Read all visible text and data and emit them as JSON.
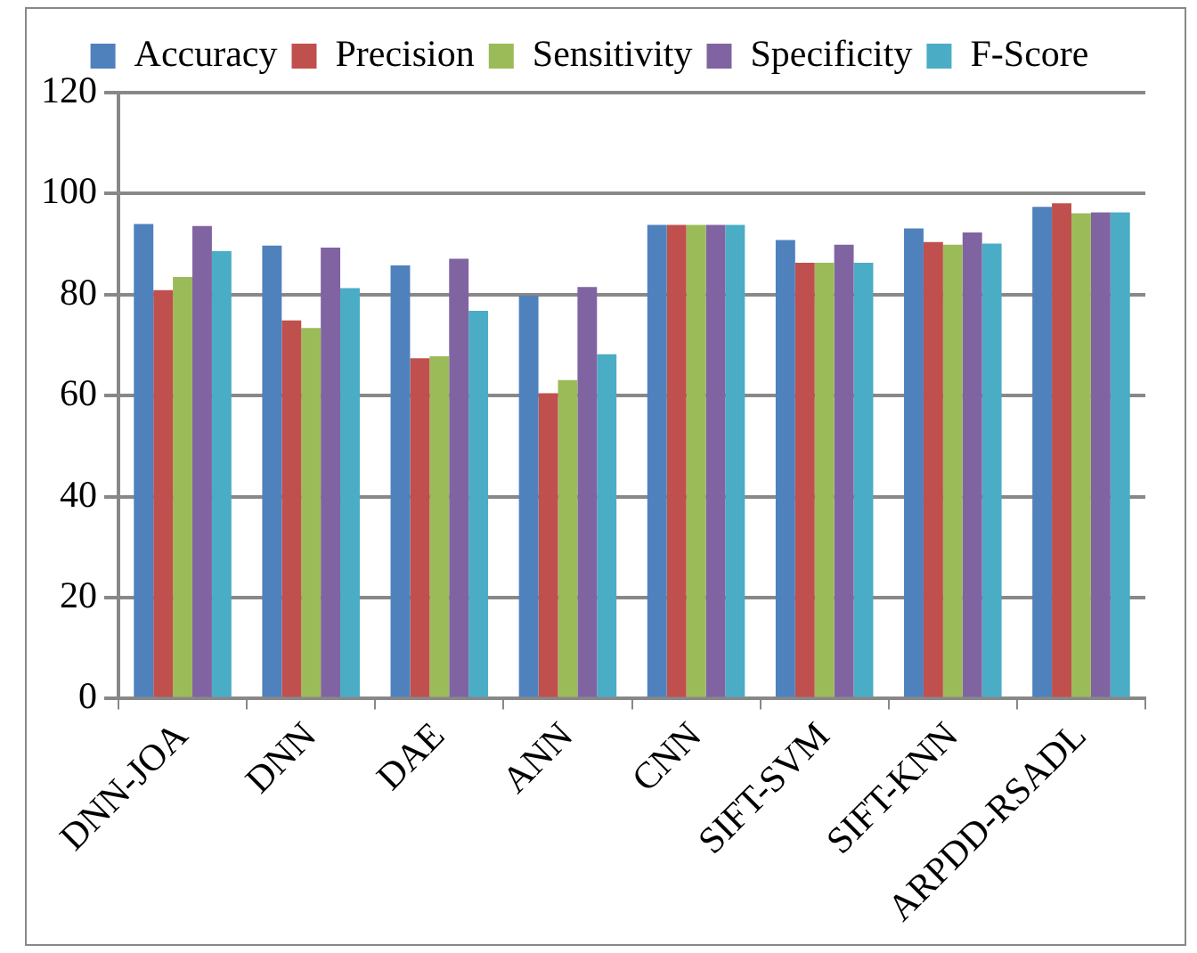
{
  "chart_data": {
    "type": "bar",
    "categories": [
      "DNN-JOA",
      "DNN",
      "DAE",
      "ANN",
      "CNN",
      "SIFT-SVM",
      "SIFT-KNN",
      "ARPDD-RSADL"
    ],
    "series": [
      {
        "name": "Accuracy",
        "color": "#4f81bd",
        "values": [
          94.0,
          89.7,
          85.8,
          79.8,
          93.8,
          90.8,
          93.1,
          97.4
        ]
      },
      {
        "name": "Precision",
        "color": "#c0504d",
        "values": [
          80.9,
          74.9,
          67.4,
          60.5,
          93.8,
          86.3,
          90.4,
          98.1
        ]
      },
      {
        "name": "Sensitivity",
        "color": "#9bbb59",
        "values": [
          83.5,
          73.4,
          67.8,
          63.1,
          93.8,
          86.3,
          89.9,
          96.1
        ]
      },
      {
        "name": "Specificity",
        "color": "#8064a2",
        "values": [
          93.6,
          89.3,
          87.1,
          81.5,
          93.8,
          89.9,
          92.3,
          96.3
        ]
      },
      {
        "name": "F-Score",
        "color": "#4bacc6",
        "values": [
          88.6,
          81.3,
          76.8,
          68.2,
          93.8,
          86.3,
          90.1,
          96.3
        ]
      }
    ],
    "ylim": [
      0,
      120
    ],
    "yticks": [
      0,
      20,
      40,
      60,
      80,
      100,
      120
    ],
    "grid": "y",
    "legend": "top"
  }
}
